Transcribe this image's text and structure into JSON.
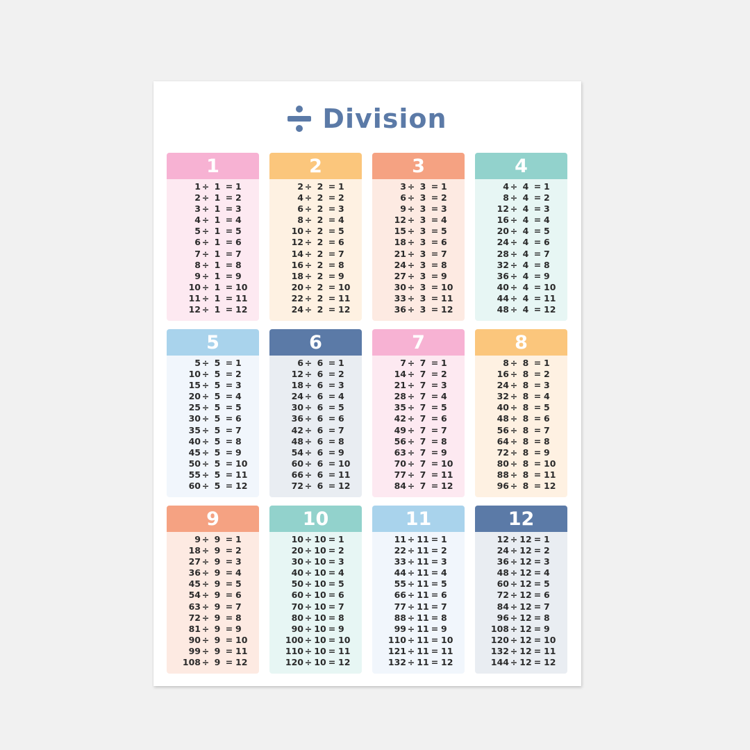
{
  "title": "Division",
  "division_symbol": "÷",
  "equals_symbol": "=",
  "tables": [
    {
      "divisor": "1",
      "header_color": "#f7b2d3",
      "body_color": "#fde9f1",
      "rows": [
        {
          "dividend": "1",
          "quotient": "1"
        },
        {
          "dividend": "2",
          "quotient": "2"
        },
        {
          "dividend": "3",
          "quotient": "3"
        },
        {
          "dividend": "4",
          "quotient": "4"
        },
        {
          "dividend": "5",
          "quotient": "5"
        },
        {
          "dividend": "6",
          "quotient": "6"
        },
        {
          "dividend": "7",
          "quotient": "7"
        },
        {
          "dividend": "8",
          "quotient": "8"
        },
        {
          "dividend": "9",
          "quotient": "9"
        },
        {
          "dividend": "10",
          "quotient": "10"
        },
        {
          "dividend": "11",
          "quotient": "11"
        },
        {
          "dividend": "12",
          "quotient": "12"
        }
      ]
    },
    {
      "divisor": "2",
      "header_color": "#fbc67c",
      "body_color": "#fef1e2",
      "rows": [
        {
          "dividend": "2",
          "quotient": "1"
        },
        {
          "dividend": "4",
          "quotient": "2"
        },
        {
          "dividend": "6",
          "quotient": "3"
        },
        {
          "dividend": "8",
          "quotient": "4"
        },
        {
          "dividend": "10",
          "quotient": "5"
        },
        {
          "dividend": "12",
          "quotient": "6"
        },
        {
          "dividend": "14",
          "quotient": "7"
        },
        {
          "dividend": "16",
          "quotient": "8"
        },
        {
          "dividend": "18",
          "quotient": "9"
        },
        {
          "dividend": "20",
          "quotient": "10"
        },
        {
          "dividend": "22",
          "quotient": "11"
        },
        {
          "dividend": "24",
          "quotient": "12"
        }
      ]
    },
    {
      "divisor": "3",
      "header_color": "#f5a282",
      "body_color": "#fdeae2",
      "rows": [
        {
          "dividend": "3",
          "quotient": "1"
        },
        {
          "dividend": "6",
          "quotient": "2"
        },
        {
          "dividend": "9",
          "quotient": "3"
        },
        {
          "dividend": "12",
          "quotient": "4"
        },
        {
          "dividend": "15",
          "quotient": "5"
        },
        {
          "dividend": "18",
          "quotient": "6"
        },
        {
          "dividend": "21",
          "quotient": "7"
        },
        {
          "dividend": "24",
          "quotient": "8"
        },
        {
          "dividend": "27",
          "quotient": "9"
        },
        {
          "dividend": "30",
          "quotient": "10"
        },
        {
          "dividend": "33",
          "quotient": "11"
        },
        {
          "dividend": "36",
          "quotient": "12"
        }
      ]
    },
    {
      "divisor": "4",
      "header_color": "#92d2cc",
      "body_color": "#e7f6f4",
      "rows": [
        {
          "dividend": "4",
          "quotient": "1"
        },
        {
          "dividend": "8",
          "quotient": "2"
        },
        {
          "dividend": "12",
          "quotient": "3"
        },
        {
          "dividend": "16",
          "quotient": "4"
        },
        {
          "dividend": "20",
          "quotient": "5"
        },
        {
          "dividend": "24",
          "quotient": "6"
        },
        {
          "dividend": "28",
          "quotient": "7"
        },
        {
          "dividend": "32",
          "quotient": "8"
        },
        {
          "dividend": "36",
          "quotient": "9"
        },
        {
          "dividend": "40",
          "quotient": "10"
        },
        {
          "dividend": "44",
          "quotient": "11"
        },
        {
          "dividend": "48",
          "quotient": "12"
        }
      ]
    },
    {
      "divisor": "5",
      "header_color": "#a9d3ec",
      "body_color": "#f1f6fc",
      "rows": [
        {
          "dividend": "5",
          "quotient": "1"
        },
        {
          "dividend": "10",
          "quotient": "2"
        },
        {
          "dividend": "15",
          "quotient": "3"
        },
        {
          "dividend": "20",
          "quotient": "4"
        },
        {
          "dividend": "25",
          "quotient": "5"
        },
        {
          "dividend": "30",
          "quotient": "6"
        },
        {
          "dividend": "35",
          "quotient": "7"
        },
        {
          "dividend": "40",
          "quotient": "8"
        },
        {
          "dividend": "45",
          "quotient": "9"
        },
        {
          "dividend": "50",
          "quotient": "10"
        },
        {
          "dividend": "55",
          "quotient": "11"
        },
        {
          "dividend": "60",
          "quotient": "12"
        }
      ]
    },
    {
      "divisor": "6",
      "header_color": "#5b7aa7",
      "body_color": "#e9edf2",
      "rows": [
        {
          "dividend": "6",
          "quotient": "1"
        },
        {
          "dividend": "12",
          "quotient": "2"
        },
        {
          "dividend": "18",
          "quotient": "3"
        },
        {
          "dividend": "24",
          "quotient": "4"
        },
        {
          "dividend": "30",
          "quotient": "5"
        },
        {
          "dividend": "36",
          "quotient": "6"
        },
        {
          "dividend": "42",
          "quotient": "7"
        },
        {
          "dividend": "48",
          "quotient": "8"
        },
        {
          "dividend": "54",
          "quotient": "9"
        },
        {
          "dividend": "60",
          "quotient": "10"
        },
        {
          "dividend": "66",
          "quotient": "11"
        },
        {
          "dividend": "72",
          "quotient": "12"
        }
      ]
    },
    {
      "divisor": "7",
      "header_color": "#f7b2d3",
      "body_color": "#fde9f1",
      "rows": [
        {
          "dividend": "7",
          "quotient": "1"
        },
        {
          "dividend": "14",
          "quotient": "2"
        },
        {
          "dividend": "21",
          "quotient": "3"
        },
        {
          "dividend": "28",
          "quotient": "4"
        },
        {
          "dividend": "35",
          "quotient": "5"
        },
        {
          "dividend": "42",
          "quotient": "6"
        },
        {
          "dividend": "49",
          "quotient": "7"
        },
        {
          "dividend": "56",
          "quotient": "8"
        },
        {
          "dividend": "63",
          "quotient": "9"
        },
        {
          "dividend": "70",
          "quotient": "10"
        },
        {
          "dividend": "77",
          "quotient": "11"
        },
        {
          "dividend": "84",
          "quotient": "12"
        }
      ]
    },
    {
      "divisor": "8",
      "header_color": "#fbc67c",
      "body_color": "#fef1e2",
      "rows": [
        {
          "dividend": "8",
          "quotient": "1"
        },
        {
          "dividend": "16",
          "quotient": "2"
        },
        {
          "dividend": "24",
          "quotient": "3"
        },
        {
          "dividend": "32",
          "quotient": "4"
        },
        {
          "dividend": "40",
          "quotient": "5"
        },
        {
          "dividend": "48",
          "quotient": "6"
        },
        {
          "dividend": "56",
          "quotient": "7"
        },
        {
          "dividend": "64",
          "quotient": "8"
        },
        {
          "dividend": "72",
          "quotient": "9"
        },
        {
          "dividend": "80",
          "quotient": "10"
        },
        {
          "dividend": "88",
          "quotient": "11"
        },
        {
          "dividend": "96",
          "quotient": "12"
        }
      ]
    },
    {
      "divisor": "9",
      "header_color": "#f5a282",
      "body_color": "#fdeae2",
      "rows": [
        {
          "dividend": "9",
          "quotient": "1"
        },
        {
          "dividend": "18",
          "quotient": "2"
        },
        {
          "dividend": "27",
          "quotient": "3"
        },
        {
          "dividend": "36",
          "quotient": "4"
        },
        {
          "dividend": "45",
          "quotient": "5"
        },
        {
          "dividend": "54",
          "quotient": "6"
        },
        {
          "dividend": "63",
          "quotient": "7"
        },
        {
          "dividend": "72",
          "quotient": "8"
        },
        {
          "dividend": "81",
          "quotient": "9"
        },
        {
          "dividend": "90",
          "quotient": "10"
        },
        {
          "dividend": "99",
          "quotient": "11"
        },
        {
          "dividend": "108",
          "quotient": "12"
        }
      ]
    },
    {
      "divisor": "10",
      "header_color": "#92d2cc",
      "body_color": "#e7f6f4",
      "rows": [
        {
          "dividend": "10",
          "quotient": "1"
        },
        {
          "dividend": "20",
          "quotient": "2"
        },
        {
          "dividend": "30",
          "quotient": "3"
        },
        {
          "dividend": "40",
          "quotient": "4"
        },
        {
          "dividend": "50",
          "quotient": "5"
        },
        {
          "dividend": "60",
          "quotient": "6"
        },
        {
          "dividend": "70",
          "quotient": "7"
        },
        {
          "dividend": "80",
          "quotient": "8"
        },
        {
          "dividend": "90",
          "quotient": "9"
        },
        {
          "dividend": "100",
          "quotient": "10"
        },
        {
          "dividend": "110",
          "quotient": "11"
        },
        {
          "dividend": "120",
          "quotient": "12"
        }
      ]
    },
    {
      "divisor": "11",
      "header_color": "#a9d3ec",
      "body_color": "#f1f6fc",
      "rows": [
        {
          "dividend": "11",
          "quotient": "1"
        },
        {
          "dividend": "22",
          "quotient": "2"
        },
        {
          "dividend": "33",
          "quotient": "3"
        },
        {
          "dividend": "44",
          "quotient": "4"
        },
        {
          "dividend": "55",
          "quotient": "5"
        },
        {
          "dividend": "66",
          "quotient": "6"
        },
        {
          "dividend": "77",
          "quotient": "7"
        },
        {
          "dividend": "88",
          "quotient": "8"
        },
        {
          "dividend": "99",
          "quotient": "9"
        },
        {
          "dividend": "110",
          "quotient": "10"
        },
        {
          "dividend": "121",
          "quotient": "11"
        },
        {
          "dividend": "132",
          "quotient": "12"
        }
      ]
    },
    {
      "divisor": "12",
      "header_color": "#5b7aa7",
      "body_color": "#e9edf2",
      "rows": [
        {
          "dividend": "12",
          "quotient": "1"
        },
        {
          "dividend": "24",
          "quotient": "2"
        },
        {
          "dividend": "36",
          "quotient": "3"
        },
        {
          "dividend": "48",
          "quotient": "4"
        },
        {
          "dividend": "60",
          "quotient": "5"
        },
        {
          "dividend": "72",
          "quotient": "6"
        },
        {
          "dividend": "84",
          "quotient": "7"
        },
        {
          "dividend": "96",
          "quotient": "8"
        },
        {
          "dividend": "108",
          "quotient": "9"
        },
        {
          "dividend": "120",
          "quotient": "10"
        },
        {
          "dividend": "132",
          "quotient": "11"
        },
        {
          "dividend": "144",
          "quotient": "12"
        }
      ]
    }
  ]
}
